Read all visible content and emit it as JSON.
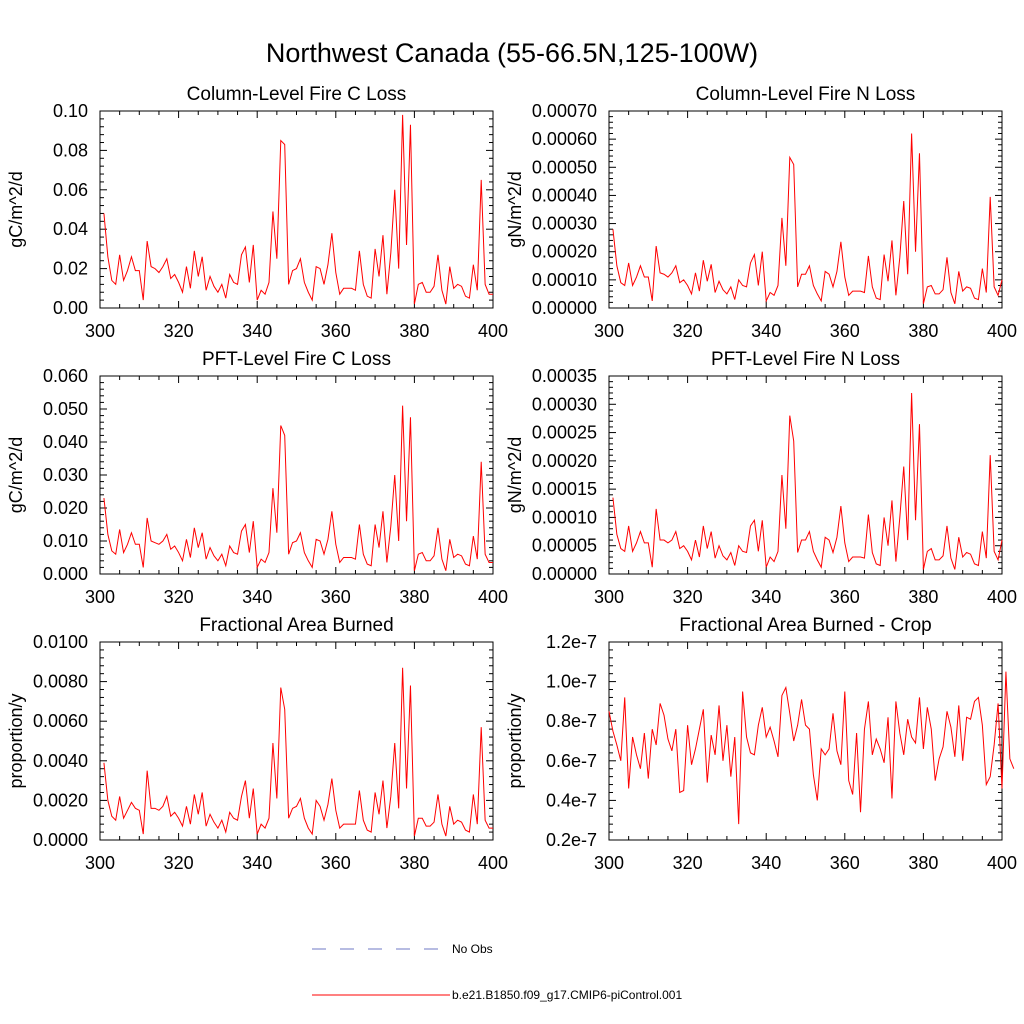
{
  "figure_title": "Northwest Canada (55-66.5N,125-100W)",
  "colors": {
    "model": "#ff0000",
    "obs": "#6f79c4",
    "axis": "#000000"
  },
  "legend": {
    "items": [
      {
        "label": "No Obs",
        "style": "dashed",
        "color": "#6f79c4"
      },
      {
        "label": "b.e21.B1850.f09_g17.CMIP6-piControl.001",
        "style": "solid",
        "color": "#ff0000"
      }
    ]
  },
  "chart_data": [
    {
      "type": "line",
      "title": "Column-Level Fire C Loss",
      "ylabel": "gC/m^2/d",
      "xlabel": "",
      "xlim": [
        300,
        400
      ],
      "ylim": [
        0,
        0.1
      ],
      "xticks": [
        300,
        320,
        340,
        360,
        380,
        400
      ],
      "xtick_labels": [
        "300",
        "320",
        "340",
        "360",
        "380",
        "400"
      ],
      "yticks": [
        0,
        0.02,
        0.04,
        0.06,
        0.08,
        0.1
      ],
      "ytick_labels": [
        "0.00",
        "0.02",
        "0.04",
        "0.06",
        "0.08",
        "0.10"
      ],
      "x_start": 301,
      "series": [
        {
          "name": "b.e21.B1850.f09_g17.CMIP6-piControl.001",
          "values": [
            0.048,
            0.026,
            0.014,
            0.012,
            0.027,
            0.014,
            0.019,
            0.026,
            0.019,
            0.019,
            0.004,
            0.034,
            0.021,
            0.02,
            0.018,
            0.021,
            0.025,
            0.015,
            0.017,
            0.013,
            0.008,
            0.021,
            0.01,
            0.029,
            0.016,
            0.026,
            0.009,
            0.016,
            0.011,
            0.008,
            0.012,
            0.005,
            0.017,
            0.013,
            0.012,
            0.027,
            0.031,
            0.013,
            0.032,
            0.004,
            0.009,
            0.007,
            0.013,
            0.049,
            0.025,
            0.085,
            0.083,
            0.012,
            0.019,
            0.02,
            0.025,
            0.013,
            0.008,
            0.004,
            0.021,
            0.02,
            0.012,
            0.022,
            0.038,
            0.018,
            0.007,
            0.01,
            0.01,
            0.01,
            0.009,
            0.029,
            0.012,
            0.006,
            0.005,
            0.03,
            0.016,
            0.037,
            0.007,
            0.028,
            0.06,
            0.02,
            0.098,
            0.032,
            0.093,
            0.002,
            0.012,
            0.013,
            0.008,
            0.008,
            0.011,
            0.027,
            0.009,
            0.002,
            0.021,
            0.01,
            0.012,
            0.011,
            0.006,
            0.005,
            0.022,
            0.009,
            0.065,
            0.012,
            0.007,
            0.007
          ]
        }
      ]
    },
    {
      "type": "line",
      "title": "Column-Level Fire N Loss",
      "ylabel": "gN/m^2/d",
      "xlabel": "",
      "xlim": [
        300,
        400
      ],
      "ylim": [
        0,
        0.0007
      ],
      "xticks": [
        300,
        320,
        340,
        360,
        380,
        400
      ],
      "xtick_labels": [
        "300",
        "320",
        "340",
        "360",
        "380",
        "400"
      ],
      "yticks": [
        0,
        0.0001,
        0.0002,
        0.0003,
        0.0004,
        0.0005,
        0.0006,
        0.0007
      ],
      "ytick_labels": [
        "0.00000",
        "0.00010",
        "0.00020",
        "0.00030",
        "0.00040",
        "0.00050",
        "0.00060",
        "0.00070"
      ],
      "x_start": 301,
      "series": [
        {
          "name": "b.e21.B1850.f09_g17.CMIP6-piControl.001",
          "values": [
            0.00028,
            0.00015,
            9e-05,
            8e-05,
            0.00016,
            8e-05,
            0.00011,
            0.00015,
            0.00011,
            0.00011,
            2.5e-05,
            0.00022,
            0.000125,
            0.00012,
            0.00011,
            0.000125,
            0.00015,
            9e-05,
            0.0001,
            8e-05,
            5e-05,
            0.000125,
            6e-05,
            0.00017,
            9.5e-05,
            0.000155,
            5.5e-05,
            9.5e-05,
            6.5e-05,
            5e-05,
            7.5e-05,
            3e-05,
            0.0001,
            8e-05,
            7.5e-05,
            0.00016,
            0.00019,
            8e-05,
            0.0002,
            2.5e-05,
            5.5e-05,
            4.5e-05,
            8e-05,
            0.00032,
            0.00015,
            0.000535,
            0.00051,
            7.5e-05,
            0.00012,
            0.00012,
            0.00015,
            8e-05,
            5e-05,
            2.5e-05,
            0.00013,
            0.00012,
            7.5e-05,
            0.00013,
            0.000235,
            0.00011,
            4.5e-05,
            6e-05,
            6e-05,
            6e-05,
            5.5e-05,
            0.000185,
            7.5e-05,
            3.5e-05,
            3e-05,
            0.00019,
            9.5e-05,
            0.00024,
            4.5e-05,
            0.00018,
            0.00038,
            0.00012,
            0.00062,
            0.0002,
            0.00055,
            1.5e-05,
            7.5e-05,
            8e-05,
            5e-05,
            5e-05,
            6.5e-05,
            0.00018,
            5.5e-05,
            1.5e-05,
            0.00013,
            6e-05,
            7.5e-05,
            7e-05,
            3.5e-05,
            3e-05,
            0.00014,
            5.5e-05,
            0.000395,
            7.5e-05,
            4.5e-05,
            0.0001
          ]
        }
      ]
    },
    {
      "type": "line",
      "title": "PFT-Level Fire C Loss",
      "ylabel": "gC/m^2/d",
      "xlabel": "",
      "xlim": [
        300,
        400
      ],
      "ylim": [
        0,
        0.06
      ],
      "xticks": [
        300,
        320,
        340,
        360,
        380,
        400
      ],
      "xtick_labels": [
        "300",
        "320",
        "340",
        "360",
        "380",
        "400"
      ],
      "yticks": [
        0,
        0.01,
        0.02,
        0.03,
        0.04,
        0.05,
        0.06
      ],
      "ytick_labels": [
        "0.000",
        "0.010",
        "0.020",
        "0.030",
        "0.040",
        "0.050",
        "0.060"
      ],
      "x_start": 301,
      "series": [
        {
          "name": "b.e21.B1850.f09_g17.CMIP6-piControl.001",
          "values": [
            0.023,
            0.012,
            0.007,
            0.006,
            0.0135,
            0.0065,
            0.009,
            0.0125,
            0.009,
            0.009,
            0.002,
            0.017,
            0.01,
            0.0095,
            0.009,
            0.01,
            0.012,
            0.0075,
            0.0085,
            0.0065,
            0.004,
            0.0105,
            0.005,
            0.014,
            0.008,
            0.0125,
            0.0045,
            0.008,
            0.0055,
            0.004,
            0.006,
            0.0025,
            0.0085,
            0.0065,
            0.006,
            0.013,
            0.015,
            0.0065,
            0.016,
            0.002,
            0.0045,
            0.0035,
            0.0065,
            0.026,
            0.0125,
            0.045,
            0.042,
            0.006,
            0.0095,
            0.01,
            0.0125,
            0.0065,
            0.004,
            0.002,
            0.0105,
            0.01,
            0.006,
            0.0105,
            0.019,
            0.009,
            0.0035,
            0.005,
            0.005,
            0.005,
            0.0045,
            0.015,
            0.006,
            0.003,
            0.0025,
            0.015,
            0.008,
            0.019,
            0.0035,
            0.0145,
            0.03,
            0.01,
            0.051,
            0.016,
            0.0475,
            0.001,
            0.006,
            0.0065,
            0.004,
            0.004,
            0.0055,
            0.014,
            0.0045,
            0.001,
            0.0105,
            0.005,
            0.006,
            0.0055,
            0.003,
            0.0025,
            0.0115,
            0.0045,
            0.034,
            0.006,
            0.0035,
            0.0035
          ]
        }
      ]
    },
    {
      "type": "line",
      "title": "PFT-Level Fire N Loss",
      "ylabel": "gN/m^2/d",
      "xlabel": "",
      "xlim": [
        300,
        400
      ],
      "ylim": [
        0,
        0.00035
      ],
      "xticks": [
        300,
        320,
        340,
        360,
        380,
        400
      ],
      "xtick_labels": [
        "300",
        "320",
        "340",
        "360",
        "380",
        "400"
      ],
      "yticks": [
        0,
        5e-05,
        0.0001,
        0.00015,
        0.0002,
        0.00025,
        0.0003,
        0.00035
      ],
      "ytick_labels": [
        "0.00000",
        "0.00005",
        "0.00010",
        "0.00015",
        "0.00020",
        "0.00025",
        "0.00030",
        "0.00035"
      ],
      "x_start": 301,
      "series": [
        {
          "name": "b.e21.B1850.f09_g17.CMIP6-piControl.001",
          "values": [
            0.000135,
            7e-05,
            4.5e-05,
            4e-05,
            8.5e-05,
            4e-05,
            5.5e-05,
            7.5e-05,
            5.5e-05,
            5.5e-05,
            1.2e-05,
            0.000115,
            6e-05,
            6e-05,
            5.5e-05,
            6e-05,
            7.5e-05,
            4.5e-05,
            5e-05,
            4e-05,
            2.5e-05,
            6e-05,
            3e-05,
            8.5e-05,
            4.5e-05,
            7.5e-05,
            2.8e-05,
            5e-05,
            3.2e-05,
            2.5e-05,
            3.8e-05,
            1.5e-05,
            5e-05,
            4e-05,
            3.8e-05,
            8.5e-05,
            9.5e-05,
            4e-05,
            9.5e-05,
            1.2e-05,
            3e-05,
            2.2e-05,
            4e-05,
            0.000175,
            8e-05,
            0.00028,
            0.000235,
            3.8e-05,
            6e-05,
            6e-05,
            7.5e-05,
            4e-05,
            2.5e-05,
            1.2e-05,
            6.5e-05,
            6e-05,
            3.8e-05,
            6.5e-05,
            0.00012,
            5.5e-05,
            2.2e-05,
            3e-05,
            3e-05,
            3e-05,
            2.8e-05,
            0.000105,
            3.8e-05,
            1.8e-05,
            1.5e-05,
            0.0001,
            5e-05,
            0.00013,
            2.2e-05,
            0.0001,
            0.00019,
            6e-05,
            0.00032,
            9.5e-05,
            0.000265,
            8e-06,
            4e-05,
            4.5e-05,
            2.5e-05,
            2.5e-05,
            3.2e-05,
            8.5e-05,
            2.8e-05,
            8e-06,
            6.5e-05,
            3e-05,
            3.8e-05,
            3.5e-05,
            1.8e-05,
            1.5e-05,
            7.5e-05,
            2.8e-05,
            0.00021,
            4e-05,
            2.5e-05,
            6e-05
          ]
        }
      ]
    },
    {
      "type": "line",
      "title": "Fractional Area Burned",
      "ylabel": "proportion/y",
      "xlabel": "",
      "xlim": [
        300,
        400
      ],
      "ylim": [
        0,
        0.01
      ],
      "xticks": [
        300,
        320,
        340,
        360,
        380,
        400
      ],
      "xtick_labels": [
        "300",
        "320",
        "340",
        "360",
        "380",
        "400"
      ],
      "yticks": [
        0,
        0.002,
        0.004,
        0.006,
        0.008,
        0.01
      ],
      "ytick_labels": [
        "0.0000",
        "0.0020",
        "0.0040",
        "0.0060",
        "0.0080",
        "0.0100"
      ],
      "x_start": 301,
      "series": [
        {
          "name": "b.e21.B1850.f09_g17.CMIP6-piControl.001",
          "values": [
            0.0039,
            0.002,
            0.0012,
            0.001,
            0.0022,
            0.0011,
            0.0015,
            0.0019,
            0.0016,
            0.0015,
            0.0003,
            0.0035,
            0.0016,
            0.0016,
            0.0015,
            0.0017,
            0.0022,
            0.0012,
            0.0014,
            0.0011,
            0.0007,
            0.0017,
            0.0008,
            0.0023,
            0.0013,
            0.0024,
            0.0007,
            0.0013,
            0.0009,
            0.0006,
            0.001,
            0.0004,
            0.0014,
            0.0011,
            0.001,
            0.0022,
            0.003,
            0.0011,
            0.0026,
            0.0003,
            0.0008,
            0.0006,
            0.0011,
            0.0049,
            0.0021,
            0.0077,
            0.0066,
            0.0011,
            0.0016,
            0.0017,
            0.0021,
            0.0011,
            0.0006,
            0.0003,
            0.002,
            0.0017,
            0.001,
            0.0018,
            0.0031,
            0.0015,
            0.0006,
            0.0008,
            0.0008,
            0.0008,
            0.0008,
            0.0025,
            0.001,
            0.0005,
            0.0004,
            0.0024,
            0.0013,
            0.003,
            0.0006,
            0.0022,
            0.0049,
            0.0016,
            0.0087,
            0.0026,
            0.0078,
            0.0002,
            0.0011,
            0.0011,
            0.0007,
            0.0007,
            0.0009,
            0.0023,
            0.0008,
            0.0002,
            0.0017,
            0.0008,
            0.001,
            0.0009,
            0.0005,
            0.0004,
            0.0023,
            0.0008,
            0.0057,
            0.001,
            0.0006,
            0.0006
          ]
        }
      ]
    },
    {
      "type": "line",
      "title": "Fractional Area Burned - Crop",
      "ylabel": "proportion/y",
      "xlabel": "",
      "xlim": [
        300,
        400
      ],
      "ylim": [
        2e-08,
        1.2e-07
      ],
      "xticks": [
        300,
        320,
        340,
        360,
        380,
        400
      ],
      "xtick_labels": [
        "300",
        "320",
        "340",
        "360",
        "380",
        "400"
      ],
      "yticks": [
        2e-08,
        4e-08,
        6e-08,
        8e-08,
        1e-07,
        1.2e-07
      ],
      "ytick_labels": [
        "0.2e-7",
        "0.4e-7",
        "0.6e-7",
        "0.8e-7",
        "1.0e-7",
        "1.2e-7"
      ],
      "x_start": 300,
      "series": [
        {
          "name": "b.e21.B1850.f09_g17.CMIP6-piControl.001",
          "values": [
            8.5e-08,
            7.5e-08,
            6.8e-08,
            6e-08,
            9.2e-08,
            4.6e-08,
            7.2e-08,
            6.3e-08,
            5.6e-08,
            7.4e-08,
            5.1e-08,
            7.6e-08,
            6.8e-08,
            8.9e-08,
            8.3e-08,
            7.1e-08,
            6.5e-08,
            7.6e-08,
            4.4e-08,
            4.5e-08,
            7.8e-08,
            5.8e-08,
            6.6e-08,
            7.6e-08,
            8.6e-08,
            4.9e-08,
            7.3e-08,
            6.3e-08,
            8.8e-08,
            6e-08,
            7.8e-08,
            5.2e-08,
            7.2e-08,
            2.8e-08,
            9.5e-08,
            7.2e-08,
            6.4e-08,
            6.3e-08,
            7.8e-08,
            8.7e-08,
            7.2e-08,
            7.7e-08,
            7e-08,
            6.2e-08,
            9.3e-08,
            9.7e-08,
            8.4e-08,
            7e-08,
            7.8e-08,
            9.1e-08,
            7.8e-08,
            7.6e-08,
            5.3e-08,
            4e-08,
            6.6e-08,
            6.3e-08,
            6.6e-08,
            8.4e-08,
            6.5e-08,
            5.8e-08,
            9.5e-08,
            5e-08,
            4.3e-08,
            7.4e-08,
            3.4e-08,
            7.6e-08,
            9e-08,
            6.3e-08,
            7.1e-08,
            6.6e-08,
            5.9e-08,
            8.2e-08,
            4.1e-08,
            9e-08,
            7.4e-08,
            6.3e-08,
            8.1e-08,
            7.2e-08,
            6.9e-08,
            9.2e-08,
            6.6e-08,
            8.7e-08,
            7.6e-08,
            5e-08,
            6.1e-08,
            6.7e-08,
            8.5e-08,
            7.7e-08,
            6.2e-08,
            8.8e-08,
            6e-08,
            8.2e-08,
            8.1e-08,
            9e-08,
            9.2e-08,
            7.8e-08,
            4.8e-08,
            5.2e-08,
            6.8e-08,
            8.9e-08,
            4.6e-08,
            1.05e-07,
            6.1e-08,
            5.6e-08
          ]
        }
      ]
    }
  ]
}
